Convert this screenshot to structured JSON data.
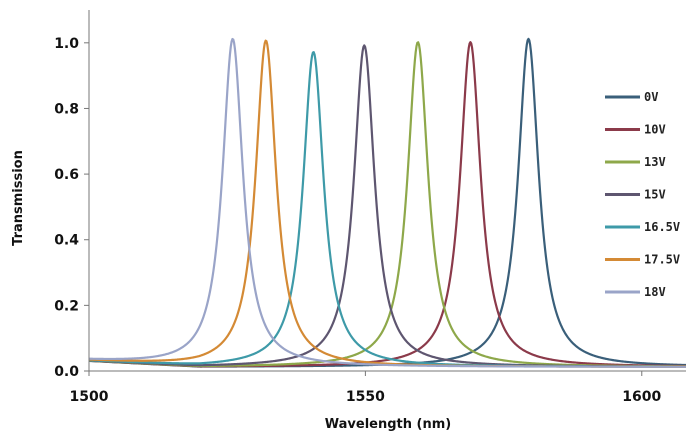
{
  "chart_data": {
    "type": "line",
    "title": "",
    "xlabel": "Wavelength (nm)",
    "ylabel": "Transmission",
    "xlim": [
      1500,
      1608
    ],
    "ylim": [
      0,
      1.1
    ],
    "x_ticks": [
      1500,
      1550,
      1600
    ],
    "y_ticks": [
      "0.0",
      "0.2",
      "0.4",
      "0.6",
      "0.8",
      "1.0"
    ],
    "grid": false,
    "legend_position": "right",
    "series": [
      {
        "name": "0V",
        "color": "#3a5f7a",
        "center": 1579.5,
        "peak": 1.0,
        "fwhm": 4.5
      },
      {
        "name": "10V",
        "color": "#8b3a4a",
        "center": 1569.0,
        "peak": 0.99,
        "fwhm": 4.5
      },
      {
        "name": "13V",
        "color": "#8ea84a",
        "center": 1559.5,
        "peak": 0.99,
        "fwhm": 4.5
      },
      {
        "name": "15V",
        "color": "#5e5670",
        "center": 1549.8,
        "peak": 0.98,
        "fwhm": 4.5
      },
      {
        "name": "16.5V",
        "color": "#3e9aa8",
        "center": 1540.6,
        "peak": 0.96,
        "fwhm": 4.5
      },
      {
        "name": "17.5V",
        "color": "#d48a35",
        "center": 1532.0,
        "peak": 0.995,
        "fwhm": 4.5
      },
      {
        "name": "18V",
        "color": "#9aa4c8",
        "center": 1526.0,
        "peak": 1.0,
        "fwhm": 4.5
      }
    ]
  }
}
